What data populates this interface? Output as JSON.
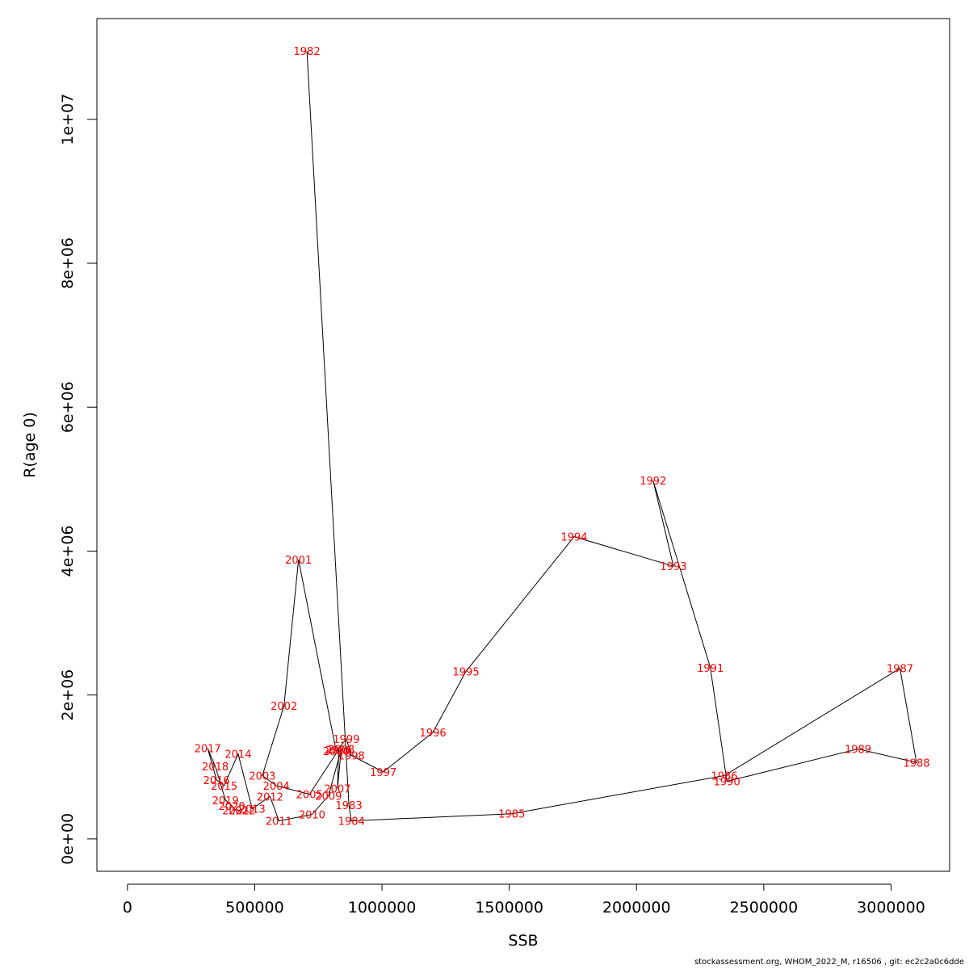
{
  "chart_data": {
    "type": "line",
    "xlabel": "SSB",
    "ylabel": "R(age 0)",
    "xlim": [
      -120000,
      3230000
    ],
    "ylim": [
      -450000,
      11400000
    ],
    "x_ticks": [
      0,
      500000,
      1000000,
      1500000,
      2000000,
      2500000,
      3000000
    ],
    "x_tick_labels": [
      "0",
      "500000",
      "1000000",
      "1500000",
      "2000000",
      "2500000",
      "3000000"
    ],
    "y_ticks": [
      0,
      2000000,
      4000000,
      6000000,
      8000000,
      10000000
    ],
    "y_tick_labels": [
      "0e+00",
      "2e+06",
      "4e+06",
      "6e+06",
      "8e+06",
      "1e+07"
    ],
    "grid": false,
    "line_color": "#000000",
    "label_color": "#ff0000",
    "points": [
      {
        "label": "1982",
        "x": 705000,
        "y": 10950000
      },
      {
        "label": "1983",
        "x": 870000,
        "y": 470000
      },
      {
        "label": "1984",
        "x": 880000,
        "y": 250000
      },
      {
        "label": "1985",
        "x": 1510000,
        "y": 350000
      },
      {
        "label": "1986",
        "x": 2345000,
        "y": 880000
      },
      {
        "label": "1987",
        "x": 3035000,
        "y": 2370000
      },
      {
        "label": "1988",
        "x": 3100000,
        "y": 1060000
      },
      {
        "label": "1989",
        "x": 2870000,
        "y": 1250000
      },
      {
        "label": "1990",
        "x": 2355000,
        "y": 800000
      },
      {
        "label": "1991",
        "x": 2290000,
        "y": 2380000
      },
      {
        "label": "1992",
        "x": 2065000,
        "y": 4980000
      },
      {
        "label": "1993",
        "x": 2145000,
        "y": 3790000
      },
      {
        "label": "1994",
        "x": 1755000,
        "y": 4200000
      },
      {
        "label": "1995",
        "x": 1330000,
        "y": 2330000
      },
      {
        "label": "1996",
        "x": 1200000,
        "y": 1480000
      },
      {
        "label": "1997",
        "x": 1005000,
        "y": 930000
      },
      {
        "label": "1998",
        "x": 880000,
        "y": 1160000
      },
      {
        "label": "1999",
        "x": 860000,
        "y": 1390000
      },
      {
        "label": "2000",
        "x": 820000,
        "y": 1220000
      },
      {
        "label": "2001",
        "x": 672000,
        "y": 3880000
      },
      {
        "label": "2002",
        "x": 615000,
        "y": 1850000
      },
      {
        "label": "2003",
        "x": 530000,
        "y": 880000
      },
      {
        "label": "2004",
        "x": 585000,
        "y": 740000
      },
      {
        "label": "2005",
        "x": 715000,
        "y": 620000
      },
      {
        "label": "2006",
        "x": 830000,
        "y": 1240000
      },
      {
        "label": "2007",
        "x": 825000,
        "y": 700000
      },
      {
        "label": "2008",
        "x": 840000,
        "y": 1250000
      },
      {
        "label": "2009",
        "x": 790000,
        "y": 600000
      },
      {
        "label": "2010",
        "x": 725000,
        "y": 340000
      },
      {
        "label": "2011",
        "x": 595000,
        "y": 250000
      },
      {
        "label": "2012",
        "x": 560000,
        "y": 590000
      },
      {
        "label": "2013",
        "x": 490000,
        "y": 420000
      },
      {
        "label": "2014",
        "x": 435000,
        "y": 1180000
      },
      {
        "label": "2015",
        "x": 380000,
        "y": 740000
      },
      {
        "label": "2016",
        "x": 350000,
        "y": 820000
      },
      {
        "label": "2017",
        "x": 315000,
        "y": 1260000
      },
      {
        "label": "2018",
        "x": 345000,
        "y": 1010000
      },
      {
        "label": "2019",
        "x": 385000,
        "y": 540000
      },
      {
        "label": "2020",
        "x": 410000,
        "y": 460000
      },
      {
        "label": "2021",
        "x": 425000,
        "y": 400000
      },
      {
        "label": "2022",
        "x": 450000,
        "y": 400000
      }
    ],
    "path_order": [
      "1982",
      "1983",
      "1984",
      "1985",
      "1986",
      "1987",
      "1988",
      "1989",
      "1990",
      "1991",
      "1992",
      "1993",
      "1994",
      "1995",
      "1996",
      "1997",
      "1998",
      "1999",
      "2000",
      "2001",
      "2002",
      "2003",
      "2004",
      "2005",
      "2006",
      "2007",
      "2008",
      "2009",
      "2010",
      "2011",
      "2012",
      "2013",
      "2014",
      "2015",
      "2016",
      "2017",
      "2018",
      "2019",
      "2020",
      "2021",
      "2022"
    ]
  },
  "footer": "stockassessment.org, WHOM_2022_M, r16506 , git: ec2c2a0c6dde"
}
